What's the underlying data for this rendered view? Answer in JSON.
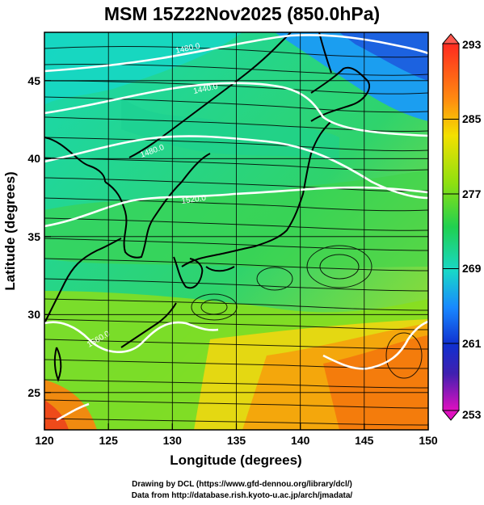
{
  "title": "MSM 15Z22Nov2025 (850.0hPa)",
  "credit_line1": "Drawing by DCL (https://www.gfd-dennou.org/library/dcl/)",
  "credit_line2": "Data from http://database.rish.kyoto-u.ac.jp/arch/jmadata/",
  "axes": {
    "xlabel": "Longitude (degrees)",
    "ylabel": "Latitude  (degrees)",
    "x_ticks": [
      "120",
      "125",
      "130",
      "135",
      "140",
      "145",
      "150"
    ],
    "y_ticks": [
      "25",
      "30",
      "35",
      "40",
      "45"
    ],
    "x_range": [
      120,
      150
    ],
    "y_range": [
      22.5,
      48
    ]
  },
  "colorbar": {
    "ticks": [
      "293",
      "285",
      "277",
      "269",
      "261",
      "253"
    ],
    "range": [
      253,
      293
    ]
  },
  "contour_labels": [
    "1480.0",
    "1440.0",
    "1480.0",
    "1520.0",
    "1560.0"
  ],
  "colors": {
    "frame": "#000000",
    "contour": "#ffffff",
    "grid": "#000000"
  }
}
